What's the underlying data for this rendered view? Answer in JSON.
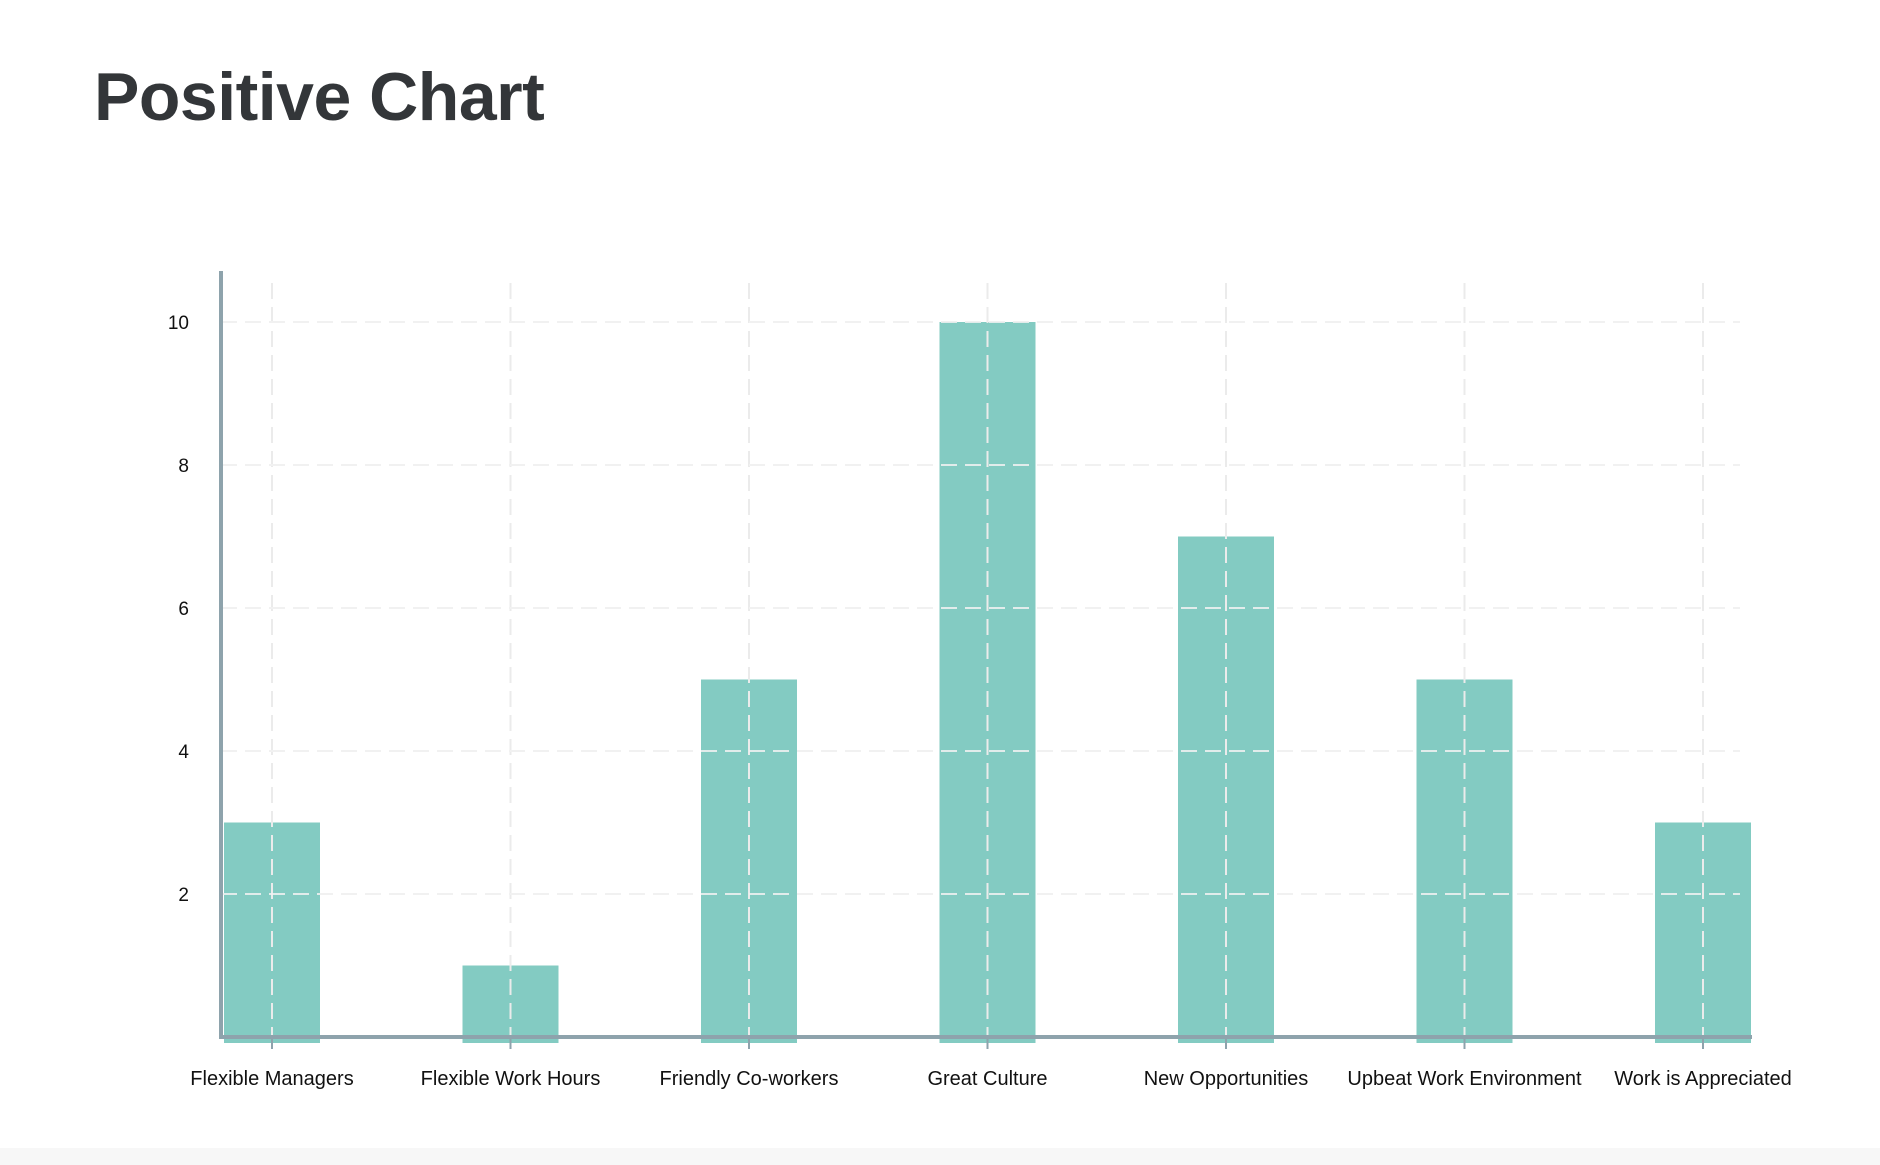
{
  "page": {
    "title": "Positive Chart"
  },
  "colors": {
    "bar": "#83cbc2",
    "axis": "#8ea3ac",
    "grid": "#e8e8e8",
    "title": "#333639"
  },
  "chart_data": {
    "type": "bar",
    "title": "Positive Chart",
    "xlabel": "",
    "ylabel": "",
    "categories": [
      "Flexible Managers",
      "Flexible Work Hours",
      "Friendly Co-workers",
      "Great Culture",
      "New Opportunities",
      "Upbeat Work Environment",
      "Work is Appreciated"
    ],
    "values": [
      3,
      1,
      5,
      10,
      7,
      5,
      3
    ],
    "yticks": [
      "2",
      "4",
      "6",
      "8",
      "10"
    ],
    "ylim": [
      0,
      10.75
    ],
    "grid": true,
    "legend": "none"
  }
}
